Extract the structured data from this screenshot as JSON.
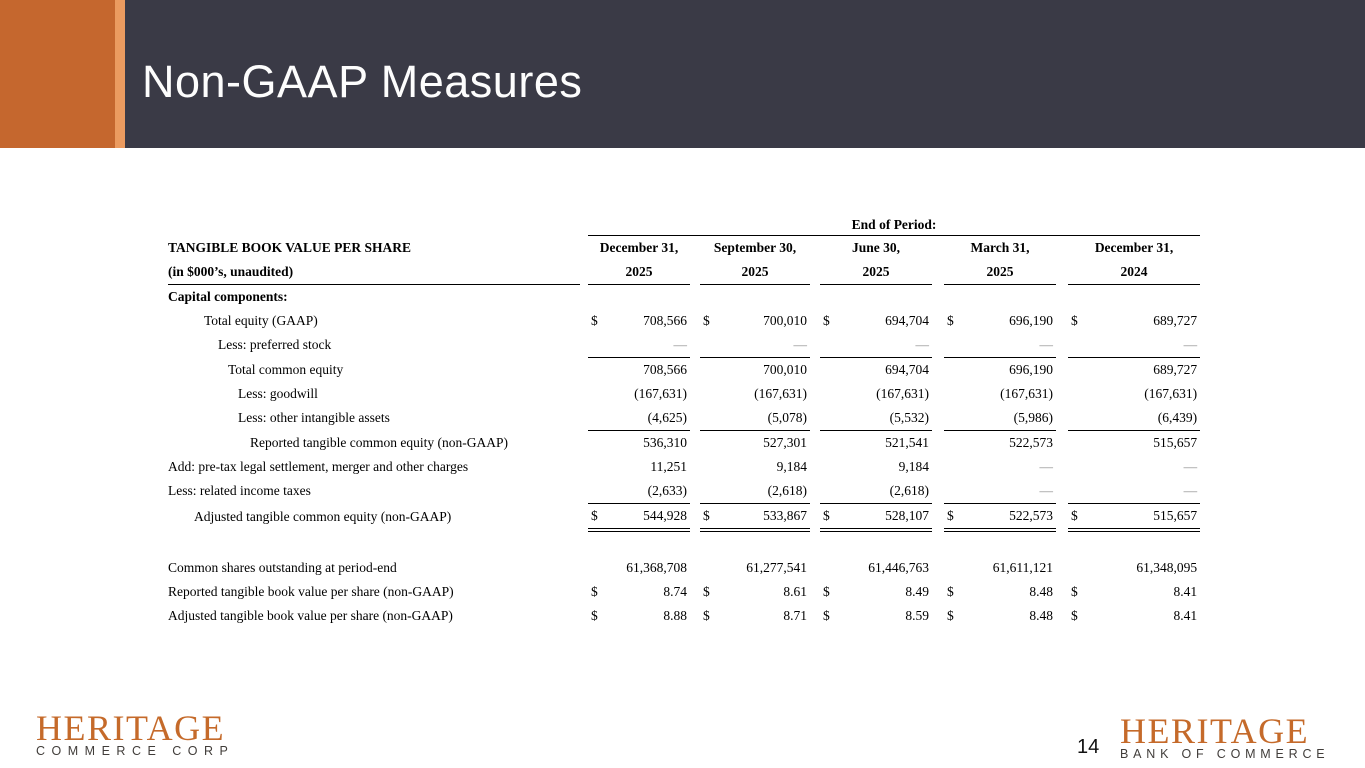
{
  "slide": {
    "title": "Non-GAAP Measures"
  },
  "colors": {
    "header_dark": "#3a3a46",
    "accent_orange": "#c5672e",
    "accent_orange_light": "#eb9b60",
    "logo_orange": "#c56a2a",
    "dash_gray": "#909090"
  },
  "table": {
    "group_header": "End of Period:",
    "title_line1": "TANGIBLE BOOK VALUE PER SHARE",
    "title_line2": "(in $000’s, unaudited)",
    "currency_symbol": "$",
    "columns": [
      {
        "line1": "December 31,",
        "line2": "2025"
      },
      {
        "line1": "September 30,",
        "line2": "2025"
      },
      {
        "line1": "June 30,",
        "line2": "2025"
      },
      {
        "line1": "March 31,",
        "line2": "2025"
      },
      {
        "line1": "December 31,",
        "line2": "2024"
      }
    ],
    "rows": [
      {
        "label": "Capital components:",
        "bold": true,
        "indent": 0,
        "values": null
      },
      {
        "label": "Total equity (GAAP)",
        "indent": 2,
        "currency": true,
        "values": [
          "708,566",
          "700,010",
          "694,704",
          "696,190",
          "689,727"
        ]
      },
      {
        "label": "Less: preferred stock",
        "indent": 3,
        "rule": "single",
        "values": [
          "—",
          "—",
          "—",
          "—",
          "—"
        ]
      },
      {
        "label": "Total common equity",
        "indent": 4,
        "values": [
          "708,566",
          "700,010",
          "694,704",
          "696,190",
          "689,727"
        ]
      },
      {
        "label": "Less: goodwill",
        "indent": 5,
        "values": [
          "(167,631)",
          "(167,631)",
          "(167,631)",
          "(167,631)",
          "(167,631)"
        ]
      },
      {
        "label": "Less: other intangible assets",
        "indent": 5,
        "rule": "single",
        "values": [
          "(4,625)",
          "(5,078)",
          "(5,532)",
          "(5,986)",
          "(6,439)"
        ]
      },
      {
        "label": "Reported tangible common equity (non-GAAP)",
        "indent": 6,
        "values": [
          "536,310",
          "527,301",
          "521,541",
          "522,573",
          "515,657"
        ]
      },
      {
        "label": "Add: pre-tax legal settlement, merger and other charges",
        "indent": 0,
        "values": [
          "11,251",
          "9,184",
          "9,184",
          "—",
          "—"
        ]
      },
      {
        "label": "Less: related income taxes",
        "indent": 0,
        "rule": "single",
        "values": [
          "(2,633)",
          "(2,618)",
          "(2,618)",
          "—",
          "—"
        ]
      },
      {
        "label": "Adjusted tangible common equity (non-GAAP)",
        "indent": 1,
        "currency": true,
        "rule": "double",
        "values": [
          "544,928",
          "533,867",
          "528,107",
          "522,573",
          "515,657"
        ]
      },
      {
        "type": "spacer"
      },
      {
        "label": "Common shares outstanding at period-end",
        "indent": 0,
        "values": [
          "61,368,708",
          "61,277,541",
          "61,446,763",
          "61,611,121",
          "61,348,095"
        ]
      },
      {
        "label": "Reported tangible book value per share (non-GAAP)",
        "indent": 0,
        "currency": true,
        "values": [
          "8.74",
          "8.61",
          "8.49",
          "8.48",
          "8.41"
        ]
      },
      {
        "label": "Adjusted tangible book value per share (non-GAAP)",
        "indent": 0,
        "currency": true,
        "values": [
          "8.88",
          "8.71",
          "8.59",
          "8.48",
          "8.41"
        ]
      }
    ]
  },
  "footer": {
    "page_number": "14",
    "left_logo": {
      "line1": "HERITAGE",
      "line2": "COMMERCE CORP"
    },
    "right_logo": {
      "line1": "HERITAGE",
      "line2": "BANK OF COMMERCE"
    }
  }
}
